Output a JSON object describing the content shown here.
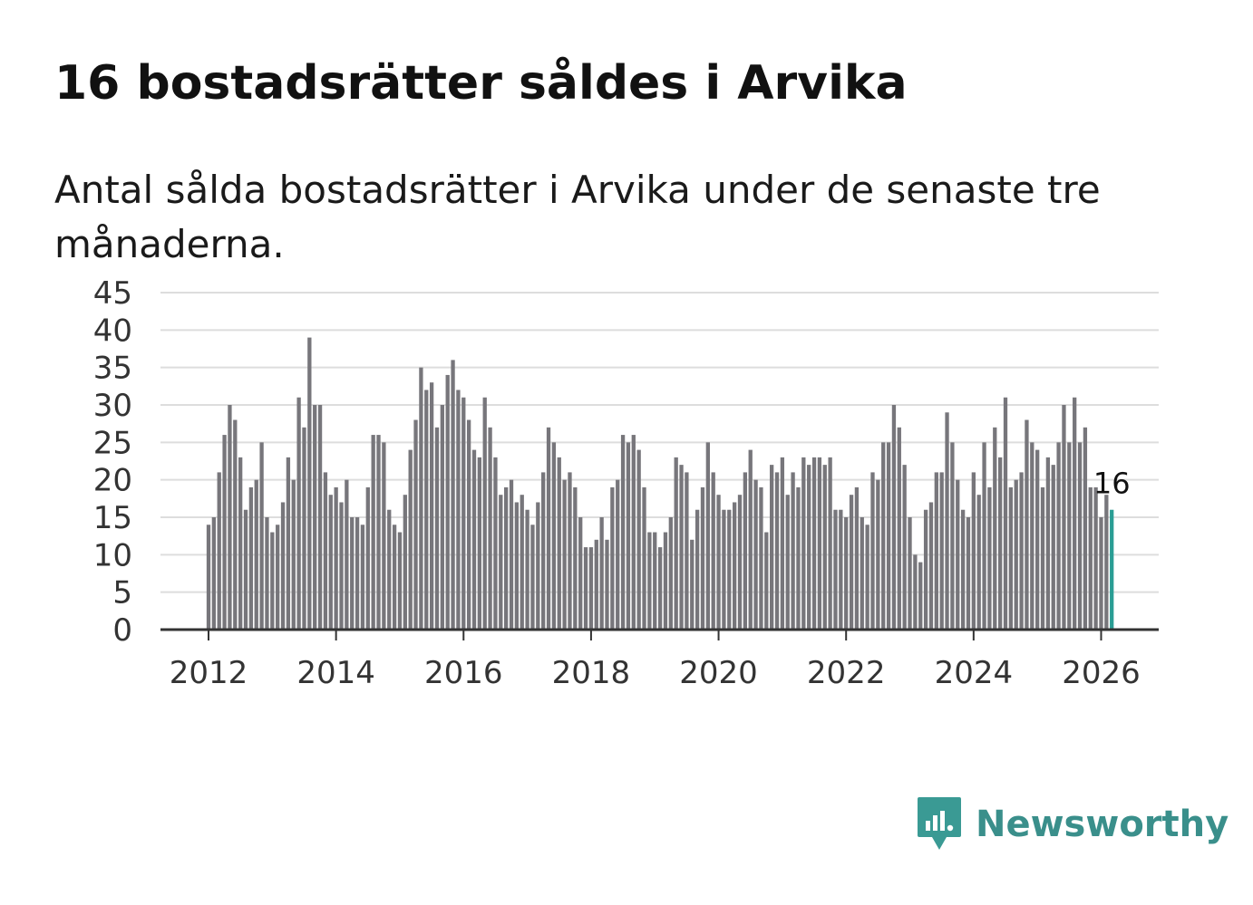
{
  "header": {
    "title": "16 bostadsrätter såldes i Arvika",
    "subtitle": "Antal sålda bostadsrätter i Arvika under de senaste tre månaderna."
  },
  "brand": {
    "name": "Newsworthy",
    "color": "#3a9a94"
  },
  "colors": {
    "bar": "#77767b",
    "highlight": "#2a9d94",
    "grid": "#dddddd",
    "axis": "#333333"
  },
  "chart_data": {
    "type": "bar",
    "title": "16 bostadsrätter såldes i Arvika",
    "xlabel": "",
    "ylabel": "",
    "ylim": [
      0,
      45
    ],
    "y_ticks": [
      0,
      5,
      10,
      15,
      20,
      25,
      30,
      35,
      40,
      45
    ],
    "x_tick_labels": [
      "2012",
      "2014",
      "2016",
      "2018",
      "2020",
      "2022",
      "2024",
      "2026"
    ],
    "start": "2012-01",
    "frequency": "monthly",
    "highlight_last": true,
    "last_value_label": "16",
    "values": [
      14,
      15,
      21,
      26,
      30,
      28,
      23,
      16,
      19,
      20,
      25,
      15,
      13,
      14,
      17,
      23,
      20,
      31,
      27,
      39,
      30,
      30,
      21,
      18,
      19,
      17,
      20,
      15,
      15,
      14,
      19,
      26,
      26,
      25,
      16,
      14,
      13,
      18,
      24,
      28,
      35,
      32,
      33,
      27,
      30,
      34,
      36,
      32,
      31,
      28,
      24,
      23,
      31,
      27,
      23,
      18,
      19,
      20,
      17,
      18,
      16,
      14,
      17,
      21,
      27,
      25,
      23,
      20,
      21,
      19,
      15,
      11,
      11,
      12,
      15,
      12,
      19,
      20,
      26,
      25,
      26,
      24,
      19,
      13,
      13,
      11,
      13,
      15,
      23,
      22,
      21,
      12,
      16,
      19,
      25,
      21,
      18,
      16,
      16,
      17,
      18,
      21,
      24,
      20,
      19,
      13,
      22,
      21,
      23,
      18,
      21,
      19,
      23,
      22,
      23,
      23,
      22,
      23,
      16,
      16,
      15,
      18,
      19,
      15,
      14,
      21,
      20,
      25,
      25,
      30,
      27,
      22,
      15,
      10,
      9,
      16,
      17,
      21,
      21,
      29,
      25,
      20,
      16,
      15,
      21,
      18,
      25,
      19,
      27,
      23,
      31,
      19,
      20,
      21,
      28,
      25,
      24,
      19,
      23,
      22,
      25,
      30,
      25,
      31,
      25,
      27,
      19,
      19,
      15,
      18,
      16
    ]
  }
}
